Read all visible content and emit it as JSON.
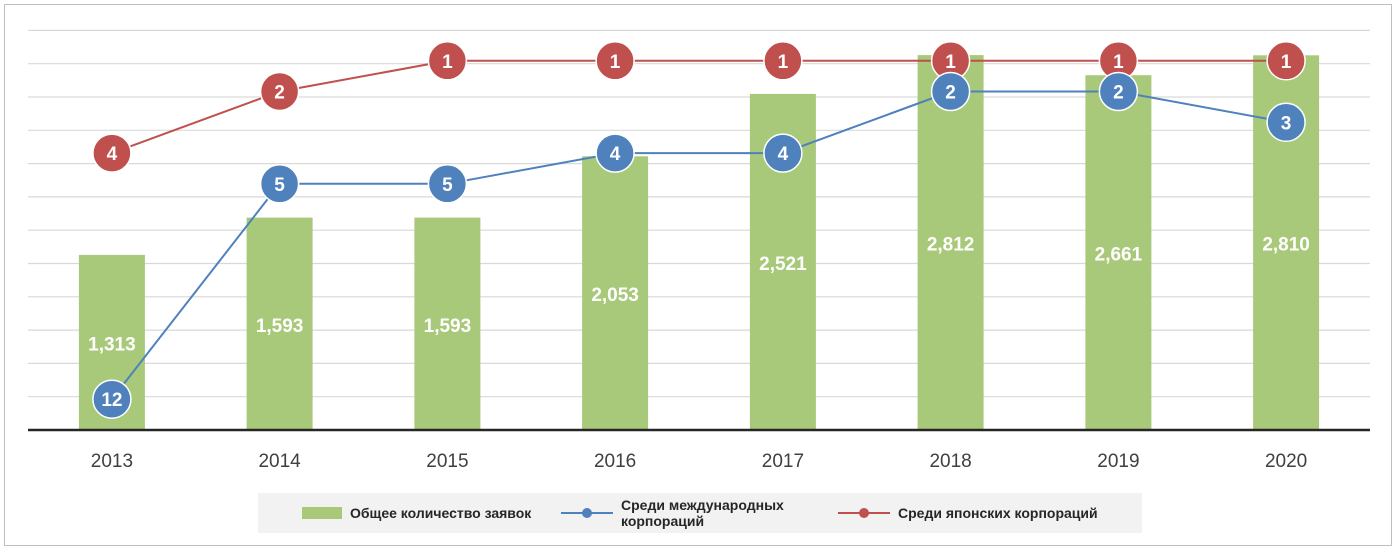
{
  "chart_data": {
    "type": "bar+line",
    "categories": [
      "2013",
      "2014",
      "2015",
      "2016",
      "2017",
      "2018",
      "2019",
      "2020"
    ],
    "bars": {
      "name": "Общее количество заявок",
      "values": [
        1313,
        1593,
        1593,
        2053,
        2521,
        2812,
        2661,
        2810
      ],
      "labels": [
        "1,313",
        "1,593",
        "1,593",
        "2,053",
        "2,521",
        "2,812",
        "2,661",
        "2,810"
      ],
      "color": "#a9c97a"
    },
    "series": [
      {
        "name": "Среди международных корпораций",
        "name_lines": [
          "Среди международных",
          "корпораций"
        ],
        "values": [
          12,
          5,
          5,
          4,
          4,
          2,
          2,
          3
        ],
        "color": "#4f81bd"
      },
      {
        "name": "Среди японских корпораций",
        "name_lines": [
          "Среди японских корпораций"
        ],
        "values": [
          4,
          2,
          1,
          1,
          1,
          1,
          1,
          1
        ],
        "color": "#c0504d"
      }
    ],
    "bar_axis_range": [
      0,
      3000
    ],
    "rank_axis_range": [
      13,
      0
    ],
    "grid": true,
    "legend_position": "bottom"
  }
}
